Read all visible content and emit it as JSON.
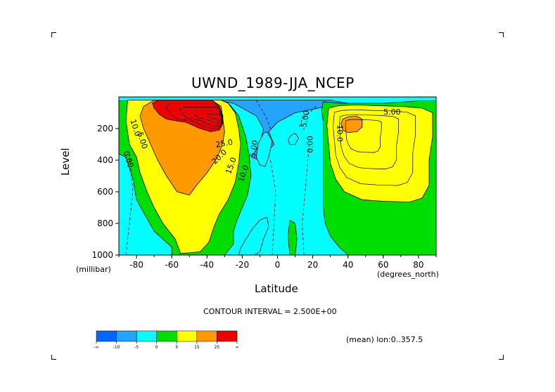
{
  "chart_data": {
    "type": "heatmap",
    "title": "UWND_1989-JJA_NCEP",
    "xlabel": "Latitude",
    "ylabel": "Level",
    "x_unit": "(degrees_north)",
    "y_unit": "(millibar)",
    "xlim": [
      -90,
      90
    ],
    "ylim": [
      1000,
      0
    ],
    "x_ticks": [
      -80,
      -60,
      -40,
      -20,
      0,
      20,
      40,
      60,
      80
    ],
    "y_ticks": [
      200,
      400,
      600,
      800,
      1000
    ],
    "contour_interval_text": "CONTOUR INTERVAL = 2.500E+00",
    "contour_labels": [
      "10.0",
      "5.00",
      "0.00",
      "25.0",
      "20.0",
      "15.0",
      "10.0",
      "5.00",
      "0.00",
      "-5.00",
      "10.0",
      "5.00"
    ],
    "legend": {
      "colors": [
        "#0066ff",
        "#22a4ff",
        "#00ffff",
        "#00dd00",
        "#ffff00",
        "#ff9900",
        "#ee0000"
      ],
      "labels": [
        "-∞",
        "-10",
        "-5",
        "0",
        "5",
        "15",
        "25",
        "∞"
      ]
    },
    "footnote": "(mean) lon:0..357.5",
    "regions": [
      {
        "level": "neg_10",
        "poly": [
          [
            -35,
            20
          ],
          [
            0,
            20
          ],
          [
            30,
            20
          ],
          [
            40,
            40
          ],
          [
            28,
            60
          ],
          [
            10,
            100
          ],
          [
            0,
            160
          ],
          [
            -5,
            220
          ],
          [
            -2,
            300
          ],
          [
            -10,
            400
          ],
          [
            -15,
            380
          ],
          [
            -10,
            300
          ],
          [
            -8,
            200
          ],
          [
            -12,
            120
          ],
          [
            -25,
            40
          ]
        ]
      },
      {
        "level": "neg_5",
        "poly": [
          [
            -6,
            220
          ],
          [
            -3,
            280
          ],
          [
            -5,
            380
          ],
          [
            -7,
            440
          ],
          [
            -10,
            430
          ],
          [
            -12,
            380
          ],
          [
            -11,
            300
          ],
          [
            -8,
            230
          ]
        ]
      },
      {
        "level": "neg_5",
        "poly": [
          [
            8,
            240
          ],
          [
            10,
            230
          ],
          [
            12,
            260
          ],
          [
            10,
            300
          ],
          [
            7,
            300
          ],
          [
            6,
            270
          ]
        ]
      },
      {
        "level": "neg_5",
        "poly": [
          [
            -10,
            780
          ],
          [
            -6,
            760
          ],
          [
            -5,
            820
          ],
          [
            -8,
            900
          ],
          [
            -10,
            980
          ],
          [
            -13,
            1000
          ],
          [
            -22,
            1000
          ],
          [
            -21,
            960
          ],
          [
            -18,
            900
          ],
          [
            -14,
            830
          ]
        ]
      },
      {
        "level": "zero",
        "poly": [
          [
            -90,
            25
          ],
          [
            -72,
            25
          ],
          [
            -60,
            30
          ],
          [
            -40,
            30
          ],
          [
            -30,
            30
          ],
          [
            -27,
            50
          ],
          [
            -22,
            120
          ],
          [
            -18,
            250
          ],
          [
            -16,
            380
          ],
          [
            -15,
            500
          ],
          [
            -17,
            620
          ],
          [
            -20,
            700
          ],
          [
            -23,
            780
          ],
          [
            -25,
            850
          ],
          [
            -25,
            930
          ],
          [
            -30,
            1000
          ],
          [
            -60,
            1000
          ],
          [
            -60,
            950
          ],
          [
            -70,
            850
          ],
          [
            -75,
            750
          ],
          [
            -80,
            650
          ],
          [
            -82,
            520
          ],
          [
            -86,
            380
          ],
          [
            -90,
            360
          ]
        ]
      },
      {
        "level": "zero",
        "poly": [
          [
            26,
            30
          ],
          [
            36,
            40
          ],
          [
            60,
            40
          ],
          [
            80,
            25
          ],
          [
            90,
            25
          ],
          [
            90,
            1000
          ],
          [
            40,
            1000
          ],
          [
            35,
            950
          ],
          [
            30,
            880
          ],
          [
            27,
            800
          ],
          [
            26,
            700
          ],
          [
            26,
            600
          ],
          [
            26,
            500
          ],
          [
            26,
            400
          ],
          [
            26,
            280
          ],
          [
            26,
            160
          ],
          [
            25,
            80
          ]
        ]
      },
      {
        "level": "zero",
        "poly": [
          [
            7,
            780
          ],
          [
            10,
            800
          ],
          [
            11,
            900
          ],
          [
            10,
            1000
          ],
          [
            7,
            1000
          ],
          [
            6,
            880
          ]
        ]
      },
      {
        "level": "pos_5",
        "poly": [
          [
            -85,
            20
          ],
          [
            -70,
            20
          ],
          [
            -45,
            20
          ],
          [
            -32,
            20
          ],
          [
            -28,
            40
          ],
          [
            -24,
            100
          ],
          [
            -22,
            200
          ],
          [
            -21,
            300
          ],
          [
            -22,
            420
          ],
          [
            -24,
            540
          ],
          [
            -28,
            650
          ],
          [
            -33,
            740
          ],
          [
            -36,
            820
          ],
          [
            -39,
            920
          ],
          [
            -44,
            980
          ],
          [
            -55,
            990
          ],
          [
            -58,
            900
          ],
          [
            -65,
            800
          ],
          [
            -70,
            700
          ],
          [
            -74,
            600
          ],
          [
            -78,
            480
          ],
          [
            -80,
            380
          ],
          [
            -84,
            300
          ],
          [
            -86,
            150
          ]
        ]
      },
      {
        "level": "pos_5",
        "poly": [
          [
            29,
            70
          ],
          [
            35,
            55
          ],
          [
            45,
            50
          ],
          [
            55,
            55
          ],
          [
            70,
            60
          ],
          [
            82,
            70
          ],
          [
            88,
            100
          ],
          [
            88,
            250
          ],
          [
            86,
            400
          ],
          [
            86,
            560
          ],
          [
            82,
            640
          ],
          [
            75,
            665
          ],
          [
            60,
            660
          ],
          [
            48,
            650
          ],
          [
            38,
            600
          ],
          [
            33,
            520
          ],
          [
            30,
            420
          ],
          [
            29,
            300
          ],
          [
            28,
            180
          ]
        ]
      },
      {
        "level": "pos_15",
        "poly": [
          [
            -70,
            20
          ],
          [
            -50,
            20
          ],
          [
            -37,
            22
          ],
          [
            -32,
            60
          ],
          [
            -31,
            140
          ],
          [
            -30,
            220
          ],
          [
            -31,
            290
          ],
          [
            -34,
            380
          ],
          [
            -40,
            480
          ],
          [
            -46,
            560
          ],
          [
            -50,
            620
          ],
          [
            -57,
            600
          ],
          [
            -63,
            500
          ],
          [
            -68,
            400
          ],
          [
            -72,
            300
          ],
          [
            -76,
            200
          ],
          [
            -78,
            120
          ],
          [
            -76,
            60
          ]
        ]
      },
      {
        "level": "pos_15",
        "poly": [
          [
            37,
            140
          ],
          [
            40,
            125
          ],
          [
            45,
            122
          ],
          [
            48,
            140
          ],
          [
            48,
            190
          ],
          [
            45,
            220
          ],
          [
            40,
            225
          ],
          [
            37,
            210
          ],
          [
            36,
            170
          ]
        ]
      },
      {
        "level": "pos_25",
        "poly": [
          [
            -68,
            20
          ],
          [
            -50,
            20
          ],
          [
            -37,
            20
          ],
          [
            -33,
            60
          ],
          [
            -31,
            120
          ],
          [
            -31,
            170
          ],
          [
            -33,
            210
          ],
          [
            -38,
            220
          ],
          [
            -44,
            200
          ],
          [
            -52,
            160
          ],
          [
            -58,
            150
          ],
          [
            -63,
            140
          ],
          [
            -67,
            110
          ],
          [
            -70,
            70
          ],
          [
            -71,
            40
          ]
        ]
      }
    ]
  }
}
